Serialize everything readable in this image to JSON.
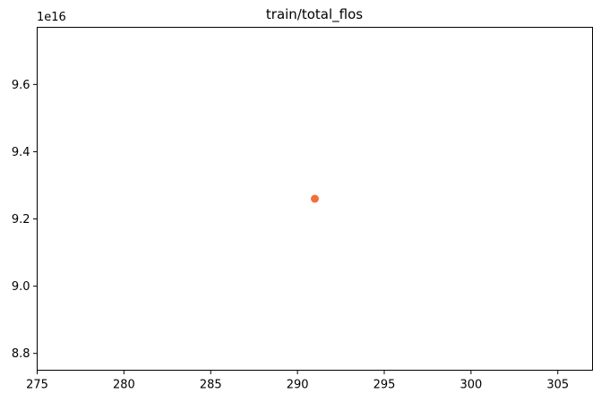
{
  "chart_data": {
    "type": "scatter",
    "title": "train/total_flos",
    "xlabel": "",
    "ylabel": "",
    "y_offset_label": "1e16",
    "xlim": [
      275,
      307
    ],
    "ylim": [
      8.75,
      9.77
    ],
    "x_ticks": [
      275,
      280,
      285,
      290,
      295,
      300,
      305
    ],
    "x_tick_labels": [
      "275",
      "280",
      "285",
      "290",
      "295",
      "300",
      "305"
    ],
    "y_ticks": [
      8.8,
      9.0,
      9.2,
      9.4,
      9.6
    ],
    "y_tick_labels": [
      "8.8",
      "9.0",
      "9.2",
      "9.4",
      "9.6"
    ],
    "grid": false,
    "series": [
      {
        "color": "#f36f3a",
        "points": [
          {
            "x": 291,
            "y": 9.26
          }
        ]
      }
    ]
  }
}
